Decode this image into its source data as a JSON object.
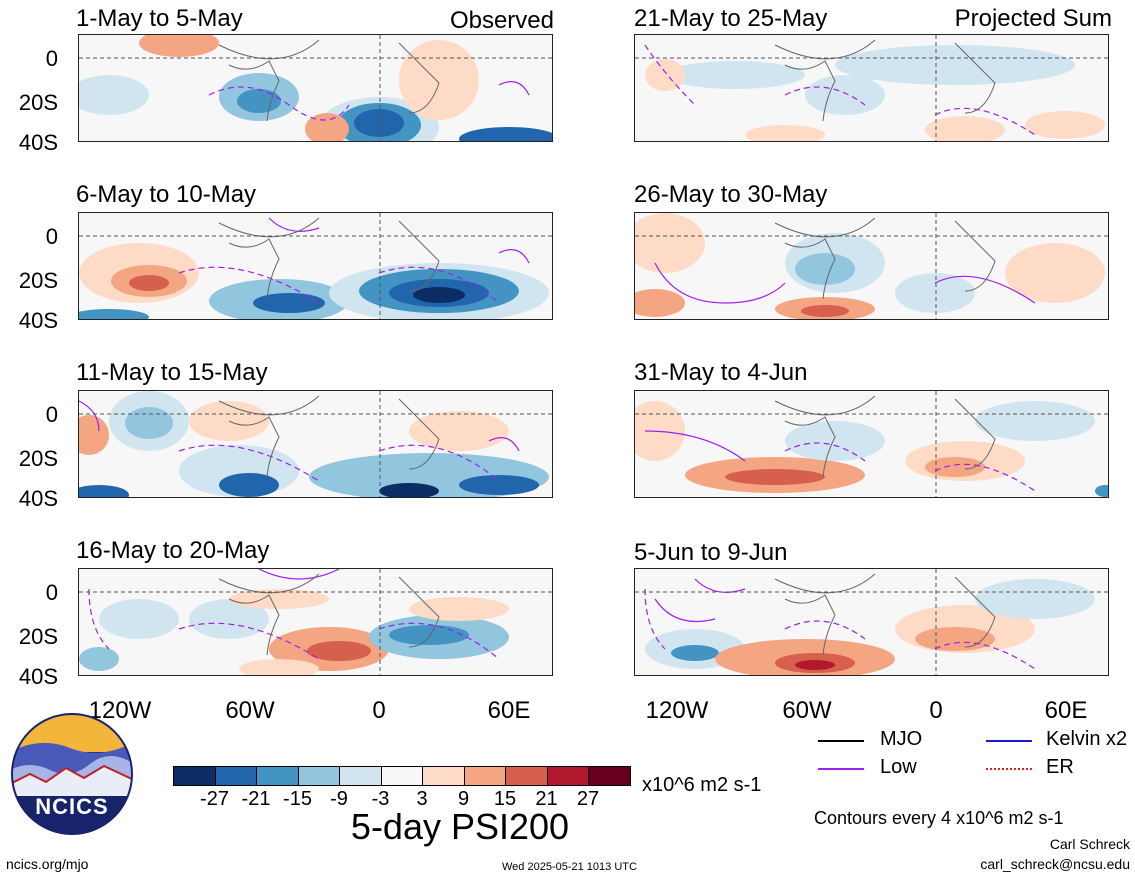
{
  "panels": [
    {
      "title": "1-May to 5-May",
      "tag": "Observed"
    },
    {
      "title": "21-May to 25-May",
      "tag": "Projected Sum"
    },
    {
      "title": "6-May to 10-May",
      "tag": ""
    },
    {
      "title": "26-May to 30-May",
      "tag": ""
    },
    {
      "title": "11-May to 15-May",
      "tag": ""
    },
    {
      "title": "31-May to 4-Jun",
      "tag": ""
    },
    {
      "title": "16-May to 20-May",
      "tag": ""
    },
    {
      "title": "5-Jun to 9-Jun",
      "tag": ""
    }
  ],
  "lat_labels": [
    "0",
    "20S",
    "40S"
  ],
  "lon_labels": [
    "120W",
    "60W",
    "0",
    "60E"
  ],
  "legend": {
    "mjo": "MJO",
    "kelvin": "Kelvin x2",
    "low": "Low",
    "er": "ER",
    "colors": {
      "mjo": "#000000",
      "kelvin": "#1a1ad6",
      "low": "#a020f0",
      "er": "#d4231c"
    }
  },
  "colorbar": {
    "labels": [
      "-27",
      "-21",
      "-15",
      "-9",
      "-3",
      "3",
      "9",
      "15",
      "21",
      "27"
    ],
    "colors": [
      "#0b2d63",
      "#2166ac",
      "#4393c3",
      "#92c5de",
      "#d1e5f0",
      "#f7f7f7",
      "#fddbc7",
      "#f4a582",
      "#d6604d",
      "#b2182b",
      "#67001f"
    ],
    "units": "x10^6 m2 s-1",
    "title": "5-day PSI200"
  },
  "contours_note": "Contours every 4 x10^6 m2 s-1",
  "logo_text": "NCICS",
  "footer": {
    "url": "ncics.org/mjo",
    "timestamp": "Wed 2025-05-21 1013 UTC",
    "author": "Carl Schreck",
    "email": "carl_schreck@ncsu.edu"
  }
}
